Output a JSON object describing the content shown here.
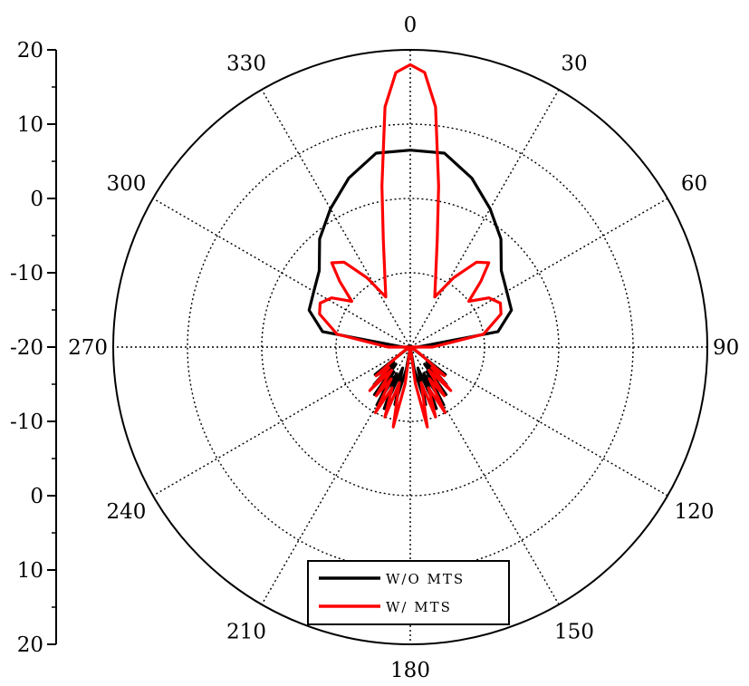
{
  "chart_data": {
    "type": "polar-line",
    "title": "",
    "angle_ticks": [
      "0",
      "30",
      "60",
      "90",
      "120",
      "150",
      "180",
      "210",
      "240",
      "270",
      "300",
      "330"
    ],
    "radial_axis": {
      "range": [
        -20,
        20
      ],
      "ring_values": [
        -20,
        -10,
        0,
        10,
        20
      ],
      "tick_labels": [
        "20",
        "10",
        "0",
        "-10",
        "-20",
        "-10",
        "0",
        "10",
        "20"
      ]
    },
    "grid": true,
    "legend_position": "bottom-center",
    "series": [
      {
        "name": "W/O MTS",
        "color": "#000000",
        "angles": [
          -180,
          -170,
          -165,
          -160,
          -157,
          -153,
          -150,
          -146,
          -143,
          -140,
          -136,
          -132,
          -128,
          -124,
          -120,
          -110,
          -100,
          -90,
          -80,
          -70,
          -60,
          -50,
          -40,
          -30,
          -20,
          -10,
          0,
          10,
          20,
          30,
          40,
          50,
          60,
          70,
          80,
          90,
          100,
          110,
          120,
          124,
          128,
          132,
          136,
          140,
          143,
          146,
          150,
          153,
          157,
          160,
          165,
          170,
          180
        ],
        "values": [
          -20,
          -17,
          -12,
          -17,
          -11,
          -16,
          -11,
          -16,
          -12,
          -17,
          -13,
          -17,
          -14,
          -19,
          -20,
          -20,
          -20,
          -19,
          -8,
          -5.5,
          -5,
          -4,
          -1,
          1.5,
          4.2,
          6.5,
          6.5,
          6.5,
          4.2,
          1.5,
          -1,
          -4,
          -5,
          -5.5,
          -8,
          -19,
          -20,
          -20,
          -20,
          -19,
          -14,
          -17,
          -13,
          -17,
          -12,
          -16,
          -11,
          -16,
          -11,
          -17,
          -12,
          -17,
          -20
        ]
      },
      {
        "name": "W/ MTS",
        "color": "#ff0000",
        "angles": [
          -180,
          -172,
          -168,
          -163,
          -160,
          -156,
          -152,
          -149,
          -145,
          -141,
          -137,
          -134,
          -130,
          -126,
          -122,
          -118,
          -112,
          -100,
          -90,
          -80,
          -70,
          -64,
          -58,
          -52,
          -47,
          -43,
          -38,
          -32,
          -26,
          -20,
          -14,
          -10,
          -6,
          -3,
          0,
          3,
          6,
          10,
          14,
          20,
          26,
          32,
          38,
          43,
          47,
          52,
          58,
          64,
          70,
          80,
          90,
          100,
          112,
          118,
          122,
          126,
          130,
          134,
          137,
          141,
          145,
          149,
          152,
          156,
          160,
          163,
          168,
          172,
          180
        ],
        "values": [
          -20,
          -15,
          -9,
          -15,
          -10,
          -14,
          -10,
          -15,
          -12,
          -16,
          -12,
          -16,
          -14,
          -18,
          -19,
          -20,
          -20,
          -20,
          -17,
          -10,
          -7,
          -6.5,
          -7.5,
          -10,
          -7,
          -4.5,
          -5.5,
          -9,
          -12.5,
          -10,
          -5,
          2,
          12.5,
          17,
          18,
          17,
          12.5,
          2,
          -5,
          -10,
          -12.5,
          -9,
          -5.5,
          -4.5,
          -7,
          -10,
          -7.5,
          -6.5,
          -7,
          -10,
          -17,
          -20,
          -20,
          -20,
          -19,
          -18,
          -14,
          -16,
          -12,
          -16,
          -12,
          -15,
          -10,
          -14,
          -10,
          -15,
          -9,
          -15,
          -20
        ]
      }
    ]
  }
}
